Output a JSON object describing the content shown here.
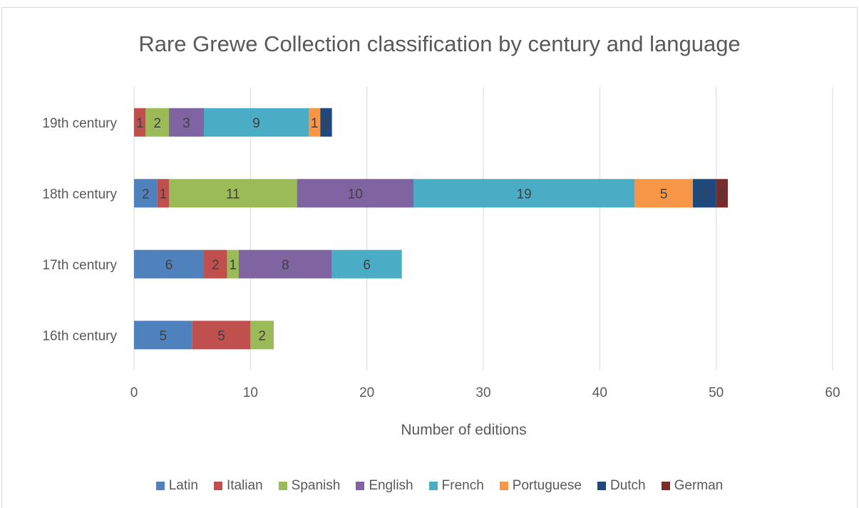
{
  "chart_data": {
    "type": "bar",
    "orientation": "horizontal",
    "stacked": true,
    "title": "Rare Grewe Collection classification by century and language",
    "xlabel": "Number of editions",
    "ylabel": "",
    "xlim": [
      0,
      60
    ],
    "xticks": [
      0,
      10,
      20,
      30,
      40,
      50,
      60
    ],
    "grid": true,
    "legend_position": "bottom",
    "categories": [
      "16th century",
      "17th century",
      "18th century",
      "19th century"
    ],
    "series": [
      {
        "name": "Latin",
        "color": "#4f81bd",
        "values": [
          5,
          6,
          2,
          0
        ]
      },
      {
        "name": "Italian",
        "color": "#c0504d",
        "values": [
          5,
          2,
          1,
          1
        ]
      },
      {
        "name": "Spanish",
        "color": "#9bbb59",
        "values": [
          2,
          1,
          11,
          2
        ]
      },
      {
        "name": "English",
        "color": "#8064a2",
        "values": [
          0,
          8,
          10,
          3
        ]
      },
      {
        "name": "French",
        "color": "#4bacc6",
        "values": [
          0,
          6,
          19,
          9
        ]
      },
      {
        "name": "Portuguese",
        "color": "#f79646",
        "values": [
          0,
          0,
          5,
          1
        ]
      },
      {
        "name": "Dutch",
        "color": "#1f497d",
        "values": [
          0,
          0,
          2,
          1
        ]
      },
      {
        "name": "German",
        "color": "#772c2a",
        "values": [
          0,
          0,
          1,
          0
        ]
      }
    ]
  }
}
